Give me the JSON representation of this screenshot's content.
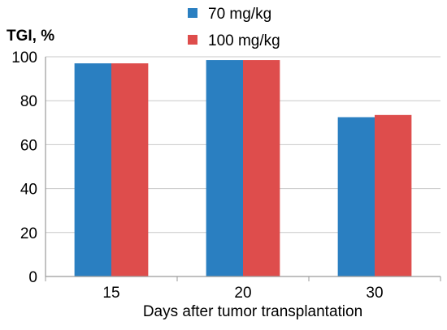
{
  "chart_data": {
    "type": "bar",
    "title": "",
    "ylabel": "TGI, %",
    "xlabel": "Days after tumor transplantation",
    "categories": [
      "15",
      "20",
      "30"
    ],
    "series": [
      {
        "name": "70 mg/kg",
        "color": "#2a7fc1",
        "values": [
          97,
          98.5,
          72.5
        ]
      },
      {
        "name": "100 mg/kg",
        "color": "#de4d4c",
        "values": [
          97,
          98.5,
          73.5
        ]
      }
    ],
    "ylim": [
      0,
      100
    ],
    "yticks": [
      "0",
      "20",
      "40",
      "60",
      "80",
      "100"
    ],
    "grid": true,
    "legend_position": "top-center"
  }
}
